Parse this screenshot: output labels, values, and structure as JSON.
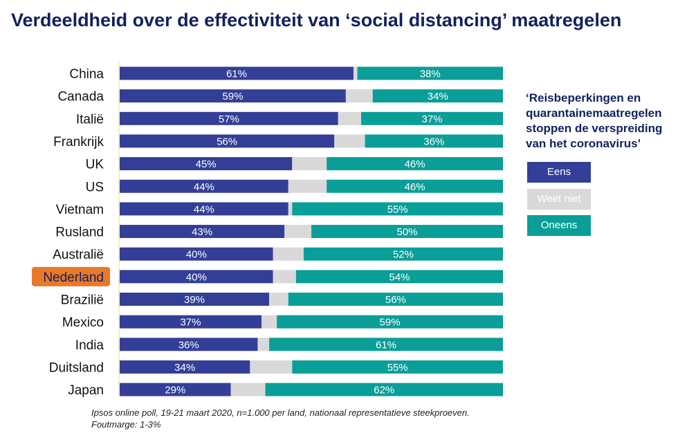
{
  "title": "Verdeeldheid over de effectiviteit van ‘social distancing’ maatregelen",
  "statement": "‘Reisbeperkingen en quarantainemaatregelen stoppen de verspreiding van het coronavirus’",
  "highlight_country": "Nederland",
  "colors": {
    "eens": "#333f97",
    "weet_niet": "#d9d9d9",
    "oneens": "#0a9e98",
    "highlight": "#e8792b",
    "title": "#10215f"
  },
  "footnote": {
    "line1": "Ipsos online poll, 19-21 maart 2020, n=1.000 per land, nationaal representatieve steekproeven.",
    "line2": "Foutmarge: 1-3%"
  },
  "chart_data": {
    "type": "bar",
    "orientation": "horizontal",
    "stacked": true,
    "xlim": [
      0,
      100
    ],
    "categories": [
      "China",
      "Canada",
      "Italië",
      "Frankrijk",
      "UK",
      "US",
      "Vietnam",
      "Rusland",
      "Australië",
      "Nederland",
      "Brazilië",
      "Mexico",
      "India",
      "Duitsland",
      "Japan"
    ],
    "series": [
      {
        "name": "Eens",
        "color": "#333f97",
        "values": [
          61,
          59,
          57,
          56,
          45,
          44,
          44,
          43,
          40,
          40,
          39,
          37,
          36,
          34,
          29
        ],
        "labels": [
          "61%",
          "59%",
          "57%",
          "56%",
          "45%",
          "44%",
          "44%",
          "43%",
          "40%",
          "40%",
          "39%",
          "37%",
          "36%",
          "34%",
          "29%"
        ]
      },
      {
        "name": "Weet niet",
        "color": "#d9d9d9",
        "values": [
          1,
          7,
          6,
          8,
          9,
          10,
          1,
          7,
          8,
          6,
          5,
          4,
          3,
          11,
          9
        ],
        "labels": []
      },
      {
        "name": "Oneens",
        "color": "#0a9e98",
        "values": [
          38,
          34,
          37,
          36,
          46,
          46,
          55,
          50,
          52,
          54,
          56,
          59,
          61,
          55,
          62
        ],
        "labels": [
          "38%",
          "34%",
          "37%",
          "36%",
          "46%",
          "46%",
          "55%",
          "50%",
          "52%",
          "54%",
          "56%",
          "59%",
          "61%",
          "55%",
          "62%"
        ]
      }
    ],
    "legend": [
      "Eens",
      "Weet niet",
      "Oneens"
    ],
    "legend_position": "right"
  }
}
